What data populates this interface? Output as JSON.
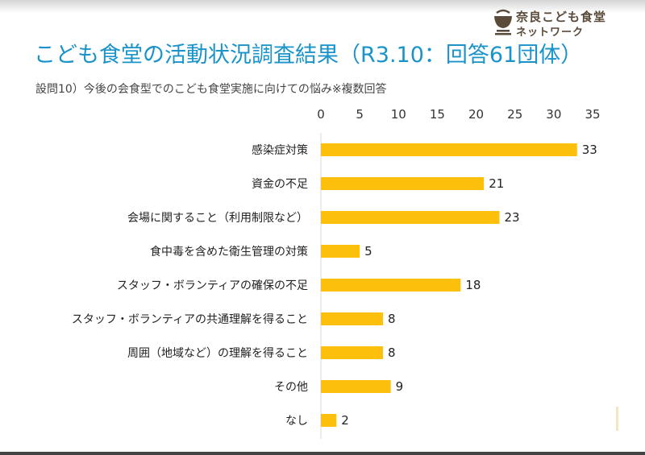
{
  "logo": {
    "line1": "奈良こども食堂",
    "line2": "ネットワーク",
    "icon": "bowl-icon"
  },
  "title": "こども食堂の活動状況調査結果（R3.10：回答61団体）",
  "subtitle": "設問10）今後の会食型でのこども食堂実施に向けての悩み※複数回答",
  "colors": {
    "bar": "#fcbf0b",
    "title": "#1a93c9",
    "grid": "#d9d9d9"
  },
  "chart_data": {
    "type": "bar",
    "orientation": "horizontal",
    "categories": [
      "感染症対策",
      "資金の不足",
      "会場に関すること（利用制限など）",
      "食中毒を含めた衛生管理の対策",
      "スタッフ・ボランティアの確保の不足",
      "スタッフ・ボランティアの共通理解を得ること",
      "周囲（地域など）の理解を得ること",
      "その他",
      "なし"
    ],
    "values": [
      33,
      21,
      23,
      5,
      18,
      8,
      8,
      9,
      2
    ],
    "xlim": [
      0,
      35
    ],
    "xticks": [
      0,
      5,
      10,
      15,
      20,
      25,
      30,
      35
    ],
    "xaxis_position": "top",
    "data_labels": true,
    "grid": false,
    "legend": "none"
  }
}
